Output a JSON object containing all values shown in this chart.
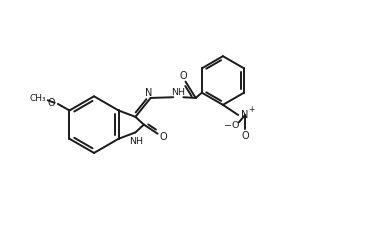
{
  "background_color": "#ffffff",
  "line_color": "#1a1a1a",
  "line_width": 1.4,
  "figsize": [
    3.66,
    2.28
  ],
  "dpi": 100,
  "xlim": [
    0,
    10
  ],
  "ylim": [
    0,
    6.24
  ]
}
